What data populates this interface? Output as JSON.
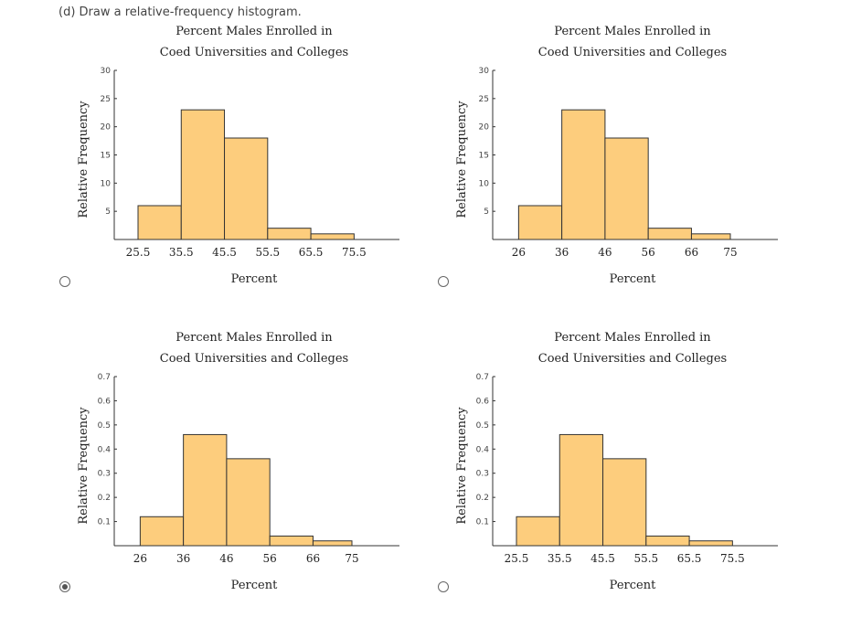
{
  "question": {
    "text": "(d) Draw a relative-frequency histogram."
  },
  "selected_option": 2,
  "chart_data": [
    {
      "type": "bar",
      "title": [
        "Percent Males Enrolled in",
        "Coed Universities and Colleges"
      ],
      "xlabel": "Percent",
      "ylabel": "Relative Frequency",
      "bin_edges": [
        25.5,
        35.5,
        45.5,
        55.5,
        65.5,
        75.5
      ],
      "x_tick_labels": [
        "25.5",
        "35.5",
        "45.5",
        "55.5",
        "65.5",
        "75.5"
      ],
      "values": [
        6,
        23,
        18,
        2,
        1
      ],
      "ylim": [
        0,
        30
      ],
      "y_ticks": [
        5,
        10,
        15,
        20,
        25,
        30
      ],
      "y_tick_labels": [
        "5",
        "10",
        "15",
        "20",
        "25",
        "30"
      ]
    },
    {
      "type": "bar",
      "title": [
        "Percent Males Enrolled in",
        "Coed Universities and Colleges"
      ],
      "xlabel": "Percent",
      "ylabel": "Relative Frequency",
      "bin_edges": [
        26,
        36,
        46,
        56,
        66,
        75
      ],
      "x_tick_labels": [
        "26",
        "36",
        "46",
        "56",
        "66",
        "75"
      ],
      "values": [
        6,
        23,
        18,
        2,
        1
      ],
      "ylim": [
        0,
        30
      ],
      "y_ticks": [
        5,
        10,
        15,
        20,
        25,
        30
      ],
      "y_tick_labels": [
        "5",
        "10",
        "15",
        "20",
        "25",
        "30"
      ]
    },
    {
      "type": "bar",
      "title": [
        "Percent Males Enrolled in",
        "Coed Universities and Colleges"
      ],
      "xlabel": "Percent",
      "ylabel": "Relative Frequency",
      "bin_edges": [
        26,
        36,
        46,
        56,
        66,
        75
      ],
      "x_tick_labels": [
        "26",
        "36",
        "46",
        "56",
        "66",
        "75"
      ],
      "values": [
        0.12,
        0.46,
        0.36,
        0.04,
        0.02
      ],
      "ylim": [
        0,
        0.7
      ],
      "y_ticks": [
        0.1,
        0.2,
        0.3,
        0.4,
        0.5,
        0.6,
        0.7
      ],
      "y_tick_labels": [
        "0.1",
        "0.2",
        "0.3",
        "0.4",
        "0.5",
        "0.6",
        "0.7"
      ]
    },
    {
      "type": "bar",
      "title": [
        "Percent Males Enrolled in",
        "Coed Universities and Colleges"
      ],
      "xlabel": "Percent",
      "ylabel": "Relative Frequency",
      "bin_edges": [
        25.5,
        35.5,
        45.5,
        55.5,
        65.5,
        75.5
      ],
      "x_tick_labels": [
        "25.5",
        "35.5",
        "45.5",
        "55.5",
        "65.5",
        "75.5"
      ],
      "values": [
        0.12,
        0.46,
        0.36,
        0.04,
        0.02
      ],
      "ylim": [
        0,
        0.7
      ],
      "y_ticks": [
        0.1,
        0.2,
        0.3,
        0.4,
        0.5,
        0.6,
        0.7
      ],
      "y_tick_labels": [
        "0.1",
        "0.2",
        "0.3",
        "0.4",
        "0.5",
        "0.6",
        "0.7"
      ]
    }
  ],
  "colors": {
    "bar_fill": "#fdcd7d",
    "bar_stroke": "#333333",
    "axis": "#333333"
  }
}
